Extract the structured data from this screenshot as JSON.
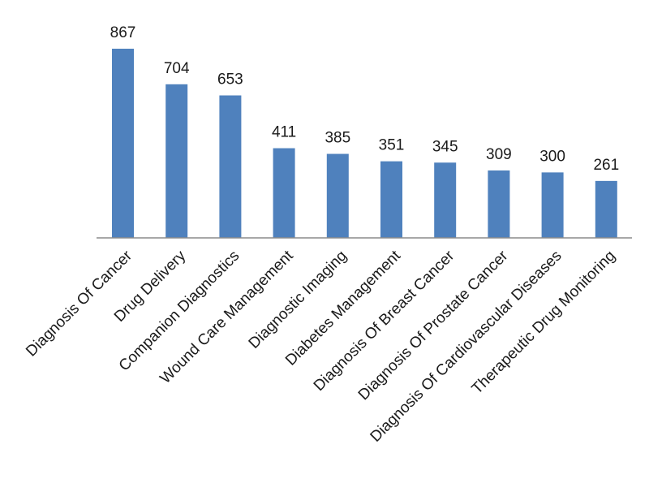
{
  "chart_data": {
    "type": "bar",
    "categories": [
      "Diagnosis Of Cancer",
      "Drug Delivery",
      "Companion Diagnostics",
      "Wound Care Management",
      "Diagnostic Imaging",
      "Diabetes Management",
      "Diagnosis Of Breast Cancer",
      "Diagnosis Of Prostate Cancer",
      "Diagnosis Of Cardiovascular Diseases",
      "Therapeutic Drug Monitoring"
    ],
    "values": [
      867,
      704,
      653,
      411,
      385,
      351,
      345,
      309,
      300,
      261
    ],
    "data_labels": [
      "867",
      "704",
      "653",
      "411",
      "385",
      "351",
      "345",
      "309",
      "300",
      "261"
    ],
    "ylim": [
      0,
      867
    ],
    "grid": false,
    "legend": "none",
    "bar_color": "#4f81bd"
  }
}
